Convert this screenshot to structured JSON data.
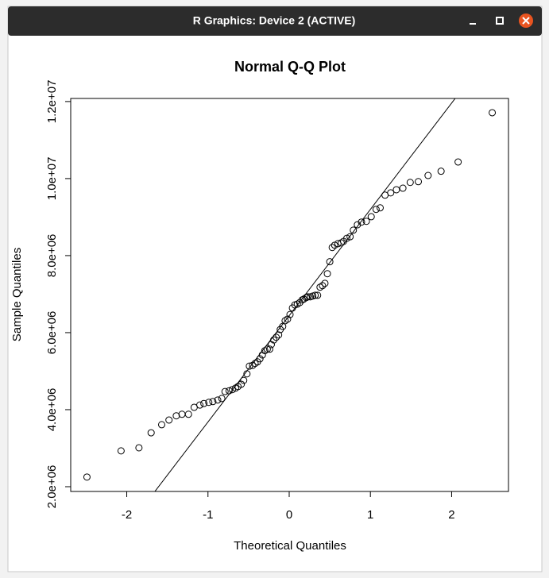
{
  "window": {
    "title": "R Graphics: Device 2 (ACTIVE)"
  },
  "chart_data": {
    "type": "scatter",
    "title": "Normal Q-Q Plot",
    "x_label": "Theoretical Quantiles",
    "y_label": "Sample Quantiles",
    "x": [
      -2.49,
      -2.07,
      -1.85,
      -1.7,
      -1.57,
      -1.48,
      -1.39,
      -1.32,
      -1.24,
      -1.17,
      -1.1,
      -1.05,
      -0.99,
      -0.94,
      -0.88,
      -0.83,
      -0.79,
      -0.74,
      -0.7,
      -0.66,
      -0.63,
      -0.59,
      -0.56,
      -0.52,
      -0.49,
      -0.45,
      -0.42,
      -0.39,
      -0.36,
      -0.33,
      -0.3,
      -0.27,
      -0.24,
      -0.22,
      -0.19,
      -0.16,
      -0.13,
      -0.11,
      -0.08,
      -0.05,
      -0.02,
      0.01,
      0.04,
      0.07,
      0.1,
      0.13,
      0.16,
      0.18,
      0.21,
      0.23,
      0.26,
      0.29,
      0.32,
      0.35,
      0.38,
      0.41,
      0.44,
      0.47,
      0.5,
      0.53,
      0.56,
      0.6,
      0.64,
      0.67,
      0.71,
      0.75,
      0.79,
      0.84,
      0.89,
      0.95,
      1.01,
      1.07,
      1.12,
      1.18,
      1.25,
      1.32,
      1.4,
      1.49,
      1.59,
      1.71,
      1.87,
      2.08,
      2.5
    ],
    "values": [
      2250000,
      2930000,
      3010000,
      3400000,
      3610000,
      3730000,
      3840000,
      3880000,
      3880000,
      4060000,
      4120000,
      4160000,
      4190000,
      4210000,
      4250000,
      4290000,
      4470000,
      4490000,
      4520000,
      4560000,
      4600000,
      4660000,
      4760000,
      4930000,
      5130000,
      5150000,
      5200000,
      5240000,
      5320000,
      5420000,
      5530000,
      5570000,
      5570000,
      5690000,
      5810000,
      5880000,
      5940000,
      6080000,
      6160000,
      6310000,
      6350000,
      6470000,
      6640000,
      6720000,
      6740000,
      6780000,
      6850000,
      6870000,
      6910000,
      6930000,
      6930000,
      6950000,
      6970000,
      6970000,
      7180000,
      7220000,
      7280000,
      7530000,
      7840000,
      8210000,
      8270000,
      8310000,
      8330000,
      8370000,
      8450000,
      8490000,
      8660000,
      8800000,
      8870000,
      8890000,
      9010000,
      9200000,
      9240000,
      9570000,
      9630000,
      9710000,
      9750000,
      9900000,
      9920000,
      10080000,
      10190000,
      10430000,
      11710000
    ],
    "reference_line": {
      "intercept": 6440000,
      "slope": 2760000
    },
    "xlim": [
      -2.69,
      2.7
    ],
    "ylim": [
      1876000,
      12080000
    ],
    "xticks": [
      -2,
      -1,
      0,
      1,
      2
    ],
    "yticks": [
      {
        "value": 2000000,
        "label": "2.0e+06"
      },
      {
        "value": 4000000,
        "label": "4.0e+06"
      },
      {
        "value": 6000000,
        "label": "6.0e+06"
      },
      {
        "value": 8000000,
        "label": "8.0e+06"
      },
      {
        "value": 10000000,
        "label": "1.0e+07"
      },
      {
        "value": 12000000,
        "label": "1.2e+07"
      }
    ]
  }
}
